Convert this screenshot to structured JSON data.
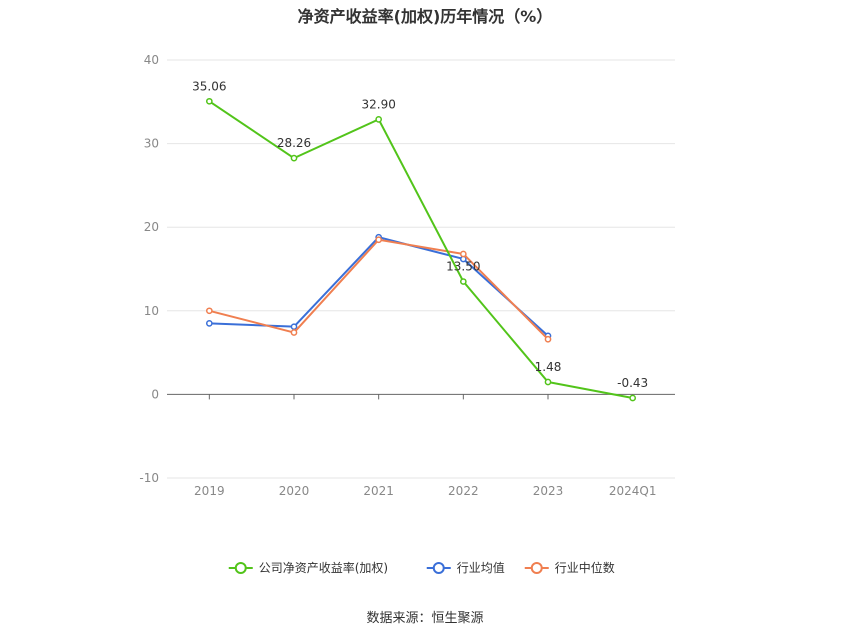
{
  "title": "净资产收益率(加权)历年情况（%）",
  "source": "数据来源：恒生聚源",
  "chart_data": {
    "type": "line",
    "title": "净资产收益率(加权)历年情况（%）",
    "categories": [
      "2019",
      "2020",
      "2021",
      "2022",
      "2023",
      "2024Q1"
    ],
    "ylim": [
      -10,
      40
    ],
    "yticks": [
      -10,
      0,
      10,
      20,
      30,
      40
    ],
    "grid": true,
    "legend_position": "bottom",
    "series": [
      {
        "name": "公司净资产收益率(加权)",
        "color": "#52c41a",
        "values": [
          35.06,
          28.26,
          32.9,
          13.5,
          1.48,
          -0.43
        ],
        "labels": [
          "35.06",
          "28.26",
          "32.90",
          "13.50",
          "1.48",
          "-0.43"
        ]
      },
      {
        "name": "行业均值",
        "color": "#3a6fd8",
        "values": [
          8.5,
          8.1,
          18.8,
          16.2,
          7.0,
          null
        ]
      },
      {
        "name": "行业中位数",
        "color": "#f07f50",
        "values": [
          10.0,
          7.4,
          18.5,
          16.8,
          6.6,
          null
        ]
      }
    ]
  }
}
